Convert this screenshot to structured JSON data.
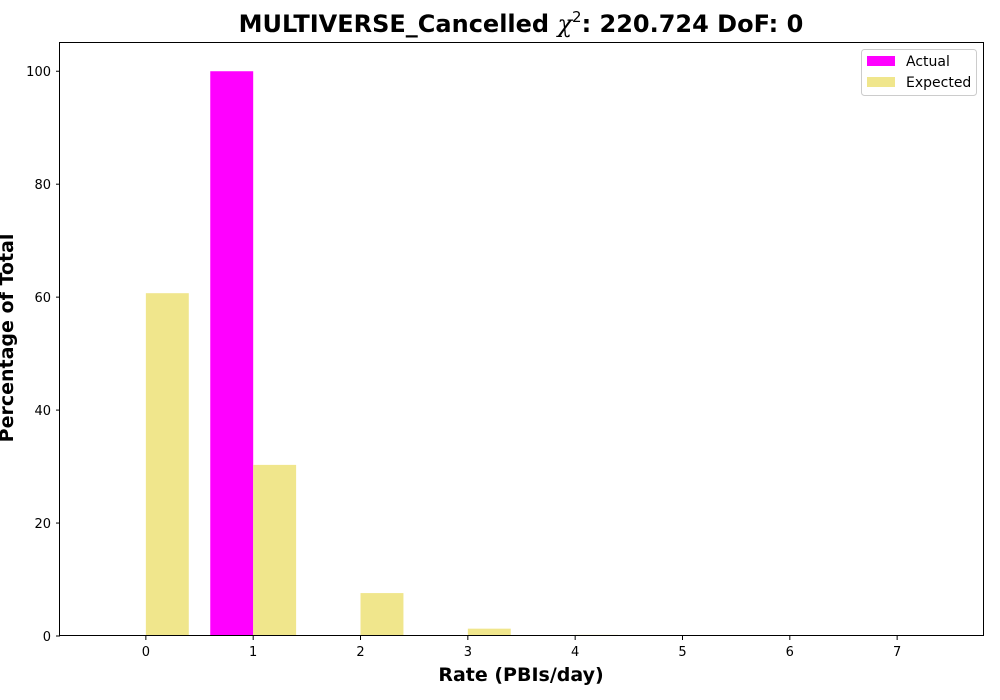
{
  "chart_data": {
    "type": "bar",
    "title_prefix": "MULTIVERSE_Cancelled ",
    "title_chi": "χ",
    "title_sup": "2",
    "title_suffix": ": 220.724 DoF: 0",
    "xlabel": "Rate (PBIs/day)",
    "ylabel": "Percentage of Total",
    "categories": [
      "0",
      "1",
      "2",
      "3",
      "4",
      "5",
      "6",
      "7"
    ],
    "x": [
      0,
      1,
      2,
      3,
      4,
      5,
      6,
      7
    ],
    "xlim": [
      -0.8,
      7.8
    ],
    "ylim": [
      0,
      105
    ],
    "yticks": [
      0,
      20,
      40,
      60,
      80,
      100
    ],
    "grid": false,
    "legend_position": "top-right",
    "series": [
      {
        "name": "Actual",
        "color": "#ff00ff",
        "offset": -0.2,
        "values": [
          0,
          100,
          0,
          0,
          0,
          0,
          0,
          0
        ]
      },
      {
        "name": "Expected",
        "color": "#f0e68c",
        "offset": 0.2,
        "values": [
          60.7,
          30.3,
          7.6,
          1.3,
          0.2,
          0.0,
          0.0,
          0.0
        ]
      }
    ]
  }
}
